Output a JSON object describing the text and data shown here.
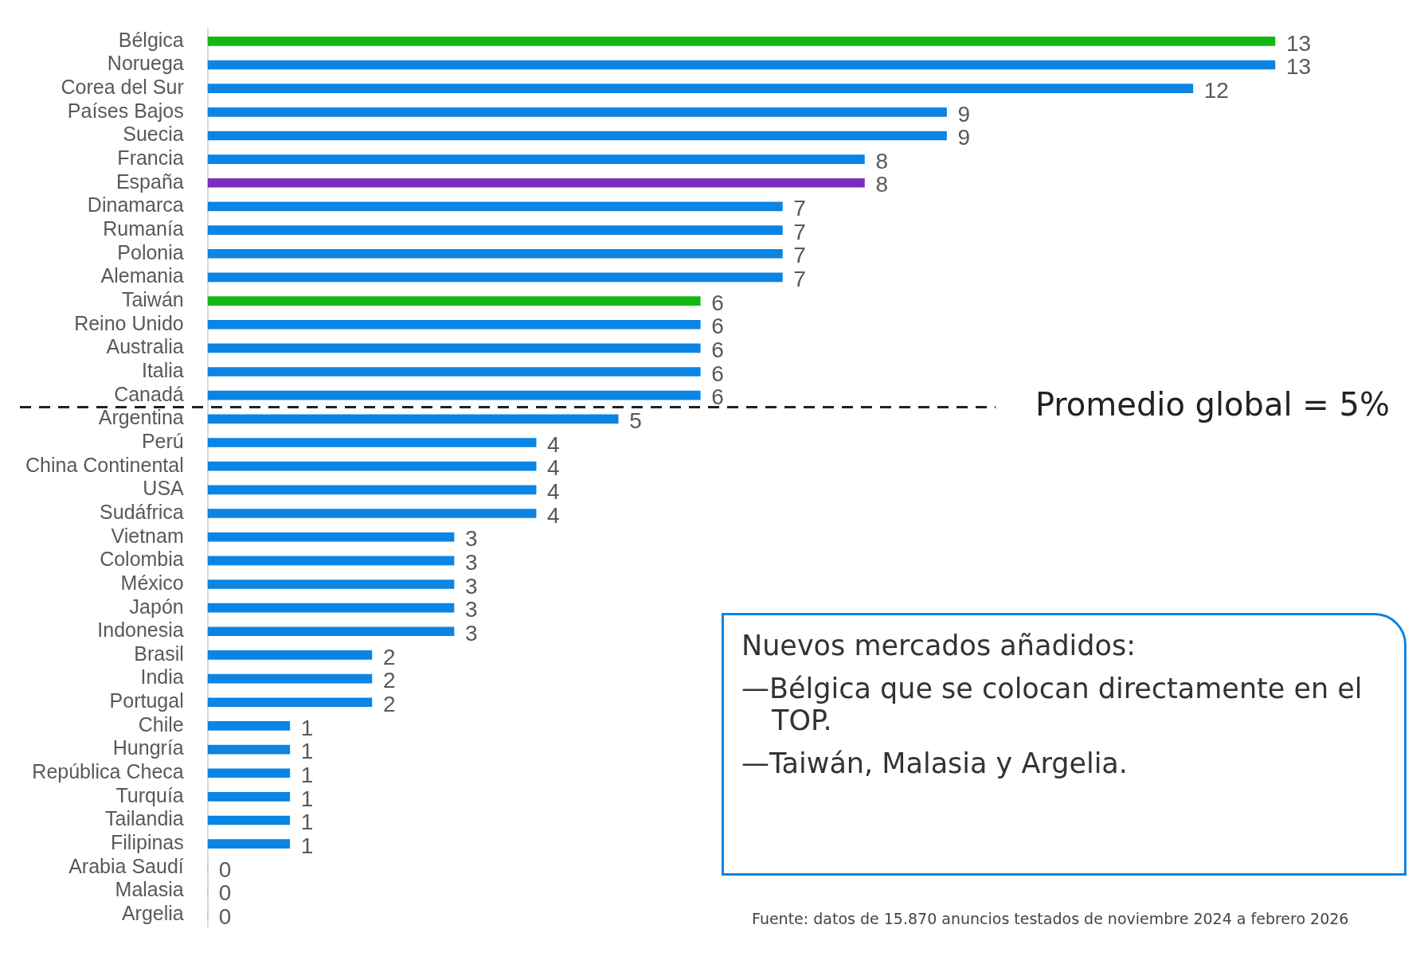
{
  "chart_data": {
    "type": "bar",
    "orientation": "horizontal",
    "categories": [
      "Bélgica",
      "Noruega",
      "Corea del Sur",
      "Países Bajos",
      "Suecia",
      "Francia",
      "España",
      "Dinamarca",
      "Rumanía",
      "Polonia",
      "Alemania",
      "Taiwán",
      "Reino Unido",
      "Australia",
      "Italia",
      "Canadá",
      "Argentina",
      "Perú",
      "China Continental",
      "USA",
      "Sudáfrica",
      "Vietnam",
      "Colombia",
      "México",
      "Japón",
      "Indonesia",
      "Brasil",
      "India",
      "Portugal",
      "Chile",
      "Hungría",
      "República Checa",
      "Turquía",
      "Tailandia",
      "Filipinas",
      "Arabia Saudí",
      "Malasia",
      "Argelia"
    ],
    "values": [
      13,
      13,
      12,
      9,
      9,
      8,
      8,
      7,
      7,
      7,
      7,
      6,
      6,
      6,
      6,
      6,
      5,
      4,
      4,
      4,
      4,
      3,
      3,
      3,
      3,
      3,
      2,
      2,
      2,
      1,
      1,
      1,
      1,
      1,
      1,
      0,
      0,
      0
    ],
    "colors": [
      "#12b812",
      "#0b84e3",
      "#0b84e3",
      "#0b84e3",
      "#0b84e3",
      "#0b84e3",
      "#7d2dbd",
      "#0b84e3",
      "#0b84e3",
      "#0b84e3",
      "#0b84e3",
      "#12b812",
      "#0b84e3",
      "#0b84e3",
      "#0b84e3",
      "#0b84e3",
      "#0b84e3",
      "#0b84e3",
      "#0b84e3",
      "#0b84e3",
      "#0b84e3",
      "#0b84e3",
      "#0b84e3",
      "#0b84e3",
      "#0b84e3",
      "#0b84e3",
      "#0b84e3",
      "#0b84e3",
      "#0b84e3",
      "#0b84e3",
      "#0b84e3",
      "#0b84e3",
      "#0b84e3",
      "#0b84e3",
      "#0b84e3",
      "#0b84e3",
      "#0b84e3",
      "#0b84e3"
    ],
    "data_labels": true,
    "legend": false,
    "tick_labels": "y",
    "annotations": [
      "Promedio global = 5%",
      "Nuevos mercados añadidos:",
      "—Bélgica que se colocan directamente en el TOP.",
      "—Taiwán, Malasia y Argelia.",
      "Fuente: datos de 15.870 anuncios testados de noviembre 2024 a febrero 2026"
    ]
  }
}
